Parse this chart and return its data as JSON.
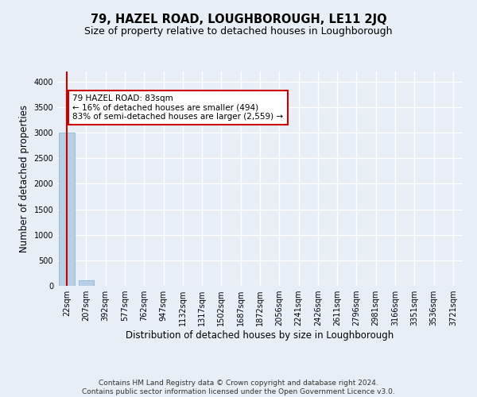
{
  "title": "79, HAZEL ROAD, LOUGHBOROUGH, LE11 2JQ",
  "subtitle": "Size of property relative to detached houses in Loughborough",
  "xlabel": "Distribution of detached houses by size in Loughborough",
  "ylabel": "Number of detached properties",
  "footer_line1": "Contains HM Land Registry data © Crown copyright and database right 2024.",
  "footer_line2": "Contains public sector information licensed under the Open Government Licence v3.0.",
  "categories": [
    "22sqm",
    "207sqm",
    "392sqm",
    "577sqm",
    "762sqm",
    "947sqm",
    "1132sqm",
    "1317sqm",
    "1502sqm",
    "1687sqm",
    "1872sqm",
    "2056sqm",
    "2241sqm",
    "2426sqm",
    "2611sqm",
    "2796sqm",
    "2981sqm",
    "3166sqm",
    "3351sqm",
    "3536sqm",
    "3721sqm"
  ],
  "values": [
    3000,
    110,
    0,
    0,
    0,
    0,
    0,
    0,
    0,
    0,
    0,
    0,
    0,
    0,
    0,
    0,
    0,
    0,
    0,
    0,
    0
  ],
  "bar_color": "#b8cfe8",
  "bar_edge_color": "#7aaed6",
  "highlight_color": "#cc0000",
  "annotation_text": "79 HAZEL ROAD: 83sqm\n← 16% of detached houses are smaller (494)\n83% of semi-detached houses are larger (2,559) →",
  "annotation_box_color": "#ffffff",
  "annotation_box_edge_color": "#cc0000",
  "ylim": [
    0,
    4200
  ],
  "yticks": [
    0,
    500,
    1000,
    1500,
    2000,
    2500,
    3000,
    3500,
    4000
  ],
  "bg_color": "#e8eef5",
  "plot_bg_color": "#e8eef5",
  "grid_color": "#ffffff",
  "title_fontsize": 10.5,
  "subtitle_fontsize": 9,
  "tick_fontsize": 7,
  "ylabel_fontsize": 8.5,
  "xlabel_fontsize": 8.5,
  "footer_fontsize": 6.5
}
